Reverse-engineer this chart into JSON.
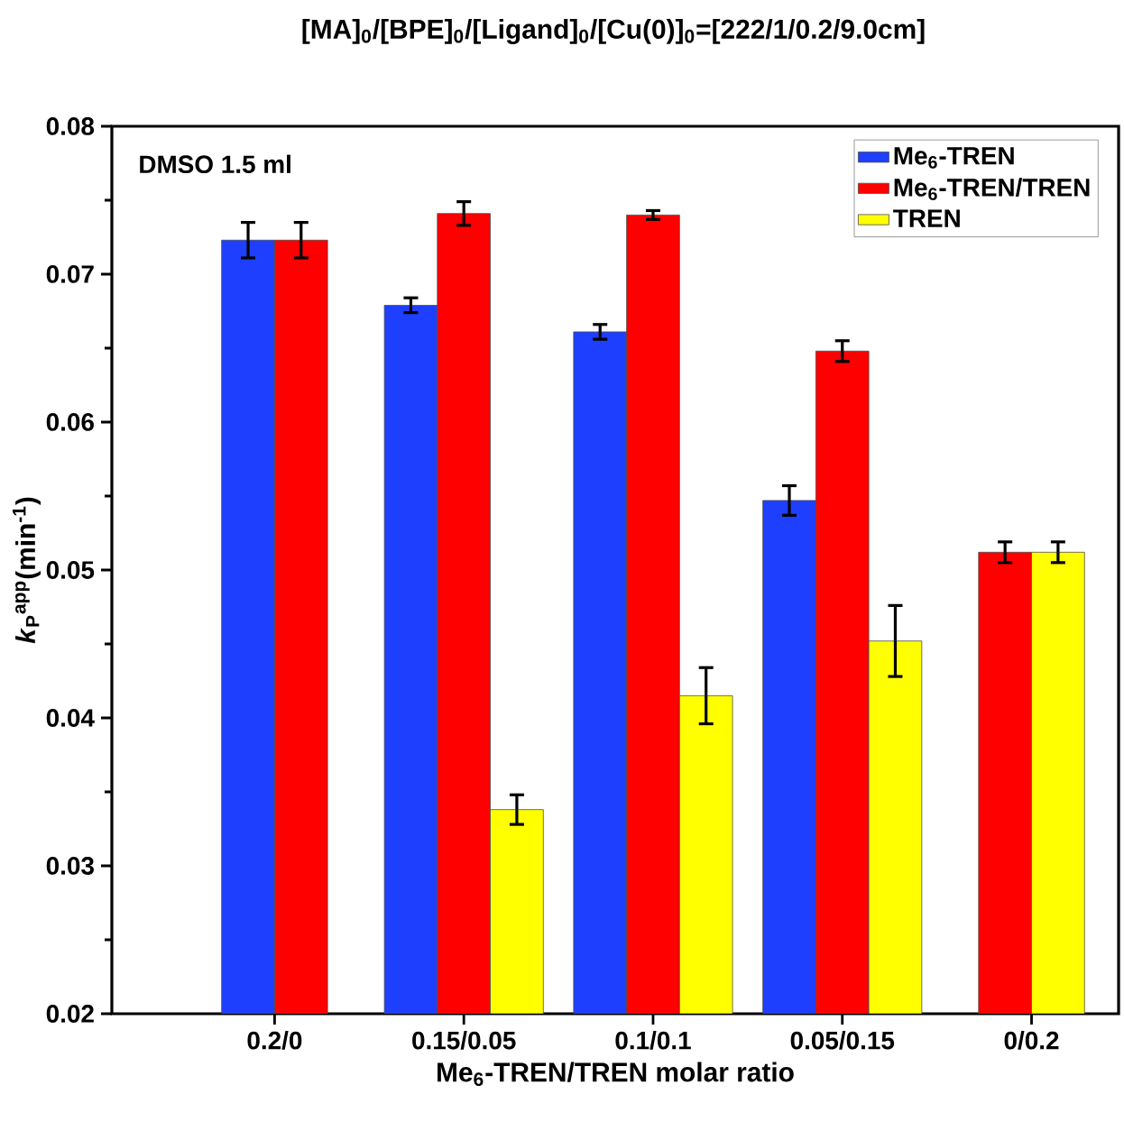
{
  "chart_data": {
    "type": "bar",
    "title": "[MA]$_{0}$/[BPE]$_{0}$/[Ligand]$_{0}$/[Cu(0)]$_{0}$=[222/1/0.2/9.0cm]",
    "xlabel": "Me$_{6}$-TREN/TREN molar ratio",
    "ylabel": "*k*$_{P}$$^{app}$(min$^{-1}$)",
    "annotations": [
      "DMSO 1.5 ml"
    ],
    "categories": [
      "0.2/0",
      "0.15/0.05",
      "0.1/0.1",
      "0.05/0.15",
      "0/0.2"
    ],
    "series": [
      {
        "name": "Me$_{6}$-TREN",
        "color": "#1f3fff",
        "values": [
          0.0723,
          0.0679,
          0.0661,
          0.0547,
          null
        ],
        "errors": [
          0.0012,
          0.0005,
          0.0005,
          0.001,
          null
        ]
      },
      {
        "name": "Me$_{6}$-TREN/TREN",
        "color": "#ff0000",
        "values": [
          0.0723,
          0.0741,
          0.074,
          0.0648,
          0.0512
        ],
        "errors": [
          0.0012,
          0.0008,
          0.0003,
          0.0007,
          0.0007
        ]
      },
      {
        "name": "TREN",
        "color": "#ffff00",
        "values": [
          null,
          0.0338,
          0.0415,
          0.0452,
          0.0512
        ],
        "errors": [
          null,
          0.001,
          0.0019,
          0.0024,
          0.0007
        ]
      }
    ],
    "ylim": [
      0.02,
      0.08
    ],
    "yticks": [
      0.02,
      0.03,
      0.04,
      0.05,
      0.06,
      0.07,
      0.08
    ],
    "legend": "top right"
  }
}
